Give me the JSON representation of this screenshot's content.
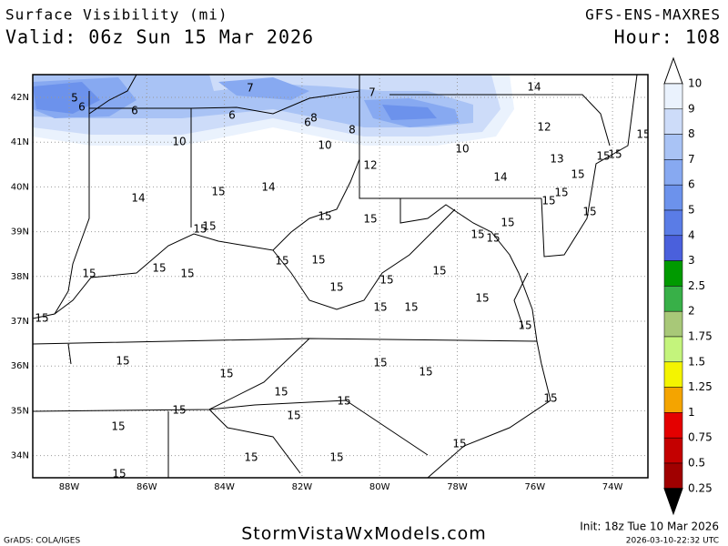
{
  "header": {
    "title": "Surface Visibility (mi)",
    "valid": "Valid: 06z Sun 15 Mar 2026",
    "model": "GFS-ENS-MAXRES",
    "hour": "Hour: 108"
  },
  "map": {
    "lat_labels": [
      "42N",
      "41N",
      "40N",
      "39N",
      "38N",
      "37N",
      "36N",
      "35N",
      "34N"
    ],
    "lon_labels": [
      "88W",
      "86W",
      "84W",
      "82W",
      "80W",
      "78W",
      "76W",
      "74W"
    ]
  },
  "stations": {
    "values": [
      5,
      6,
      6,
      7,
      7,
      14,
      6,
      6,
      8,
      8,
      10,
      10,
      12,
      10,
      12,
      13,
      15,
      15,
      15,
      15,
      14,
      14,
      15,
      14,
      15,
      15,
      15,
      15,
      15,
      15,
      15,
      15,
      15,
      15,
      15,
      15,
      15,
      15,
      15,
      15,
      15,
      15,
      15,
      15,
      15,
      15,
      15,
      15,
      15,
      15,
      15,
      15,
      15,
      15,
      15,
      15,
      15,
      15,
      15,
      15,
      15
    ]
  },
  "colorbar": {
    "levels": [
      10,
      9,
      8,
      7,
      6,
      5,
      4,
      3,
      2.5,
      2,
      1.75,
      1.5,
      1.25,
      1,
      0.75,
      0.5,
      0.25
    ],
    "over_color": "#ffffff",
    "under_color": "#000000",
    "colors": [
      "#eaf2fd",
      "#cddcf9",
      "#a9c3f5",
      "#87a9f1",
      "#6c92ec",
      "#5a7ce6",
      "#4a60dc",
      "#009a00",
      "#38b048",
      "#a8c878",
      "#c4f47c",
      "#f4f400",
      "#f4a400",
      "#e40000",
      "#c40000",
      "#a00000"
    ]
  },
  "footer": {
    "grads": "GrADS: COLA/IGES",
    "site": "StormVistaWxModels.com",
    "init": "Init: 18z Tue 10 Mar 2026",
    "stamp": "2026-03-10-22:32 UTC"
  }
}
